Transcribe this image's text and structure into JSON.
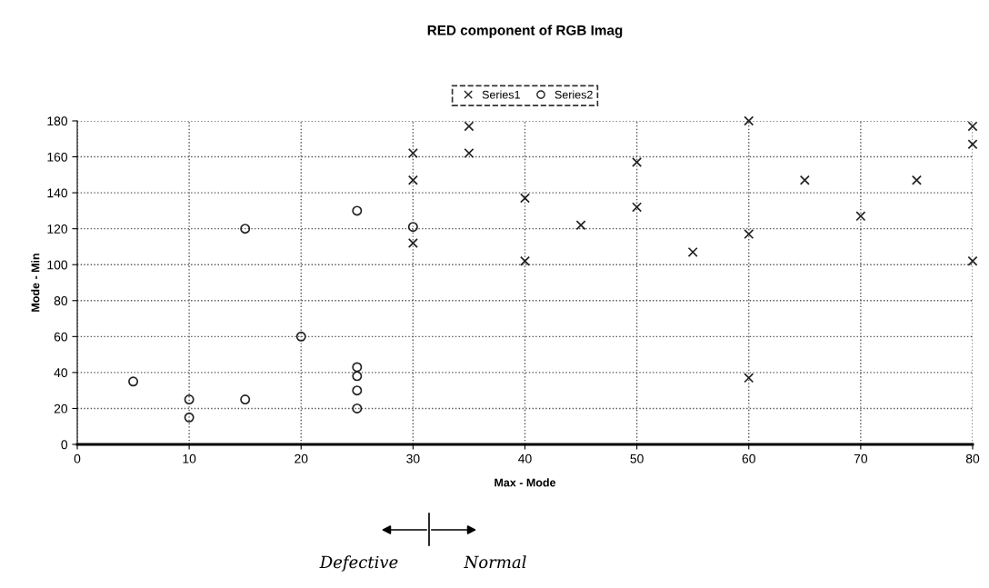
{
  "chart_data": {
    "type": "scatter",
    "title": "RED component of RGB Imag",
    "xlabel": "Max - Mode",
    "ylabel": "Mode - Min",
    "series": [
      {
        "name": "Series1",
        "color": "#222222",
        "marker": "cross",
        "x": [
          30,
          30,
          30,
          35,
          35,
          40,
          40,
          45,
          50,
          50,
          55,
          60,
          60,
          60,
          65,
          70,
          75,
          80,
          80,
          80
        ],
        "values": [
          162,
          147,
          112,
          177,
          162,
          137,
          102,
          122,
          157,
          132,
          107,
          180,
          117,
          37,
          147,
          127,
          147,
          177,
          167,
          102
        ]
      },
      {
        "name": "Series2",
        "color": "#222222",
        "marker": "circle",
        "x": [
          5,
          10,
          10,
          15,
          15,
          20,
          25,
          25,
          25,
          25,
          25,
          30
        ],
        "values": [
          35,
          25,
          15,
          25,
          120,
          60,
          130,
          43,
          38,
          30,
          20,
          121
        ]
      }
    ],
    "xlim": [
      0,
      80
    ],
    "xticks": [
      0,
      10,
      20,
      30,
      40,
      50,
      60,
      70,
      80
    ],
    "ylim": [
      0,
      180
    ],
    "yticks": [
      0,
      20,
      40,
      60,
      80,
      100,
      120,
      140,
      160,
      180
    ],
    "grid": true,
    "legend": "top",
    "annotations": [
      "Defective",
      "Normal"
    ]
  }
}
